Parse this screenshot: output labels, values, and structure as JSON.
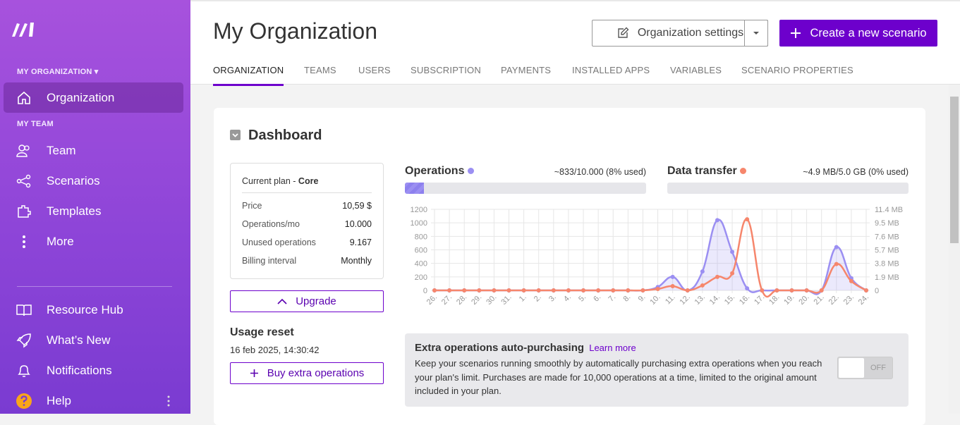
{
  "sidebar": {
    "org_label": "MY ORGANIZATION",
    "org_nav": [
      "Organization"
    ],
    "team_label": "MY TEAM",
    "team_nav": [
      "Team",
      "Scenarios",
      "Templates",
      "More"
    ],
    "bottom_nav": [
      "Resource Hub",
      "What’s New",
      "Notifications",
      "Help"
    ]
  },
  "header": {
    "title": "My Organization",
    "settings_button": "Organization settings",
    "create_button": "Create a new scenario",
    "tabs": [
      "ORGANIZATION",
      "TEAMS",
      "USERS",
      "SUBSCRIPTION",
      "PAYMENTS",
      "INSTALLED APPS",
      "VARIABLES",
      "SCENARIO PROPERTIES"
    ],
    "active_tab": 0
  },
  "dashboard": {
    "title": "Dashboard",
    "plan": {
      "label": "Current plan -",
      "name": "Core",
      "rows": [
        [
          "Price",
          "10,59 $"
        ],
        [
          "Operations/mo",
          "10.000"
        ],
        [
          "Unused operations",
          "9.167"
        ],
        [
          "Billing interval",
          "Monthly"
        ]
      ]
    },
    "upgrade_button": "Upgrade",
    "usage_reset": {
      "title": "Usage reset",
      "date": "16 feb 2025, 14:30:42"
    },
    "buy_button": "Buy extra operations",
    "operations": {
      "label": "Operations",
      "usage": "~833/10.000 (8% used)",
      "used_percent": 8,
      "color": "#9b8ff2"
    },
    "data_transfer": {
      "label": "Data transfer",
      "usage": "~4.9 MB/5.0 GB (0% used)",
      "used_percent": 0,
      "color": "#f6866c"
    },
    "extra": {
      "title": "Extra operations auto-purchasing",
      "link": "Learn more",
      "text": "Keep your scenarios running smoothly by automatically purchasing extra operations when you reach your plan's limit. Purchases are made for 10,000 operations at a time, limited to the original amount included in your plan.",
      "toggle": "OFF"
    }
  },
  "chart_data": {
    "type": "line",
    "categories": [
      "26.",
      "27.",
      "28.",
      "29.",
      "30.",
      "31.",
      "1.",
      "2.",
      "3.",
      "4.",
      "5.",
      "6.",
      "7.",
      "8.",
      "9.",
      "10.",
      "11.",
      "12.",
      "13.",
      "14.",
      "15.",
      "16.",
      "17.",
      "18.",
      "19.",
      "20.",
      "21.",
      "22.",
      "23.",
      "24."
    ],
    "series": [
      {
        "name": "Operations",
        "color": "#9b8ff2",
        "axis": "y",
        "values": [
          0,
          0,
          0,
          0,
          0,
          0,
          0,
          0,
          0,
          0,
          0,
          0,
          0,
          0,
          0,
          50,
          200,
          0,
          280,
          1040,
          570,
          30,
          0,
          0,
          0,
          0,
          0,
          640,
          180,
          0
        ]
      },
      {
        "name": "Data transfer",
        "color": "#f6866c",
        "axis": "y2",
        "values": [
          0,
          0,
          0,
          0,
          0,
          0,
          0,
          0,
          0,
          0,
          0,
          0,
          0,
          0,
          0,
          0.2,
          0.6,
          0,
          0.7,
          1.9,
          2.4,
          10.0,
          0,
          0,
          0,
          0,
          0,
          3.7,
          1.3,
          0
        ]
      }
    ],
    "ylim": [
      0,
      1200
    ],
    "yticks": [
      0,
      200,
      400,
      600,
      800,
      1000,
      1200
    ],
    "y2lim": [
      0,
      11.4
    ],
    "y2ticks": [
      {
        "value": 0,
        "label": "0"
      },
      {
        "value": 1.9,
        "label": "1.9 MB"
      },
      {
        "value": 3.8,
        "label": "3.8 MB"
      },
      {
        "value": 5.7,
        "label": "5.7 MB"
      },
      {
        "value": 7.6,
        "label": "7.6 MB"
      },
      {
        "value": 9.5,
        "label": "9.5 MB"
      },
      {
        "value": 11.4,
        "label": "11.4 MB"
      }
    ],
    "grid": true
  }
}
